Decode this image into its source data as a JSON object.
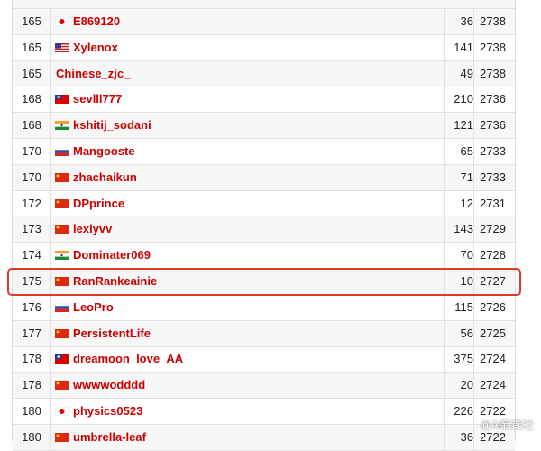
{
  "table": {
    "rows": [
      {
        "rank": 165,
        "flag": "jp",
        "handle": "E869120",
        "solved": 36,
        "rating": 2738
      },
      {
        "rank": 165,
        "flag": "us",
        "handle": "Xylenox",
        "solved": 141,
        "rating": 2738
      },
      {
        "rank": 165,
        "handle": "Chinese_zjc_",
        "solved": 49,
        "rating": 2738
      },
      {
        "rank": 168,
        "flag": "tw",
        "handle": "sevlll777",
        "solved": 210,
        "rating": 2736
      },
      {
        "rank": 168,
        "flag": "in",
        "handle": "kshitij_sodani",
        "solved": 121,
        "rating": 2736
      },
      {
        "rank": 170,
        "flag": "ru",
        "handle": "Mangooste",
        "solved": 65,
        "rating": 2733
      },
      {
        "rank": 170,
        "flag": "cn",
        "handle": "zhachaikun",
        "solved": 71,
        "rating": 2733
      },
      {
        "rank": 172,
        "flag": "cn",
        "handle": "DPprince",
        "solved": 12,
        "rating": 2731
      },
      {
        "rank": 173,
        "flag": "cn",
        "handle": "lexiyvv",
        "solved": 143,
        "rating": 2729
      },
      {
        "rank": 174,
        "flag": "in",
        "handle": "Dominater069",
        "solved": 70,
        "rating": 2728
      },
      {
        "rank": 175,
        "flag": "cn",
        "handle": "RanRankeainie",
        "solved": 10,
        "rating": 2727,
        "highlighted": true
      },
      {
        "rank": 176,
        "flag": "ru",
        "handle": "LeoPro",
        "solved": 115,
        "rating": 2726
      },
      {
        "rank": 177,
        "flag": "cn",
        "handle": "PersistentLife",
        "solved": 56,
        "rating": 2725
      },
      {
        "rank": 178,
        "flag": "tw",
        "handle": "dreamoon_love_AA",
        "solved": 375,
        "rating": 2724
      },
      {
        "rank": 178,
        "flag": "cn",
        "handle": "wwwwodddd",
        "solved": 20,
        "rating": 2724
      },
      {
        "rank": 180,
        "flag": "jp",
        "handle": "physics0523",
        "solved": 226,
        "rating": 2722
      },
      {
        "rank": 180,
        "flag": "cn",
        "handle": "umbrella-leaf",
        "solved": 36,
        "rating": 2722
      }
    ]
  },
  "watermark": "@AI新能社"
}
